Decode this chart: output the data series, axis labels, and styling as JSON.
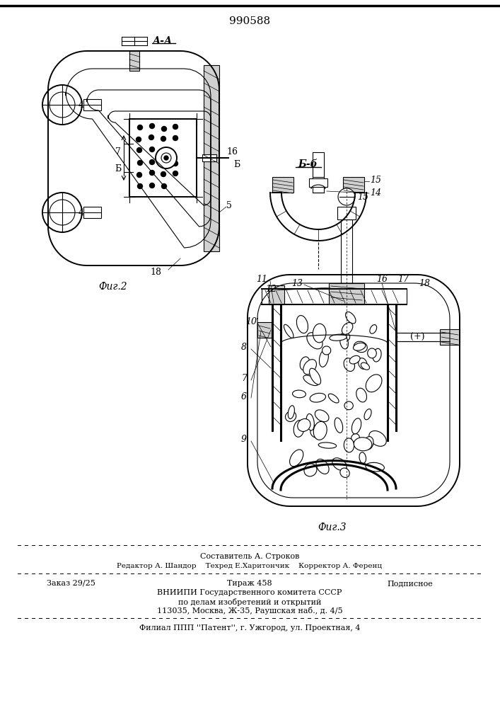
{
  "patent_number": "990588",
  "background_color": "#ffffff",
  "line_color": "#000000",
  "footer_lines": [
    "Составитель А. Строков",
    "Редактор А. Шандор    Техред Е.Харитончик    Корректор А. Ференц",
    "Заказ 29/25              Тираж 458                    Подписное",
    "ВНИИПИ Государственного комитета СССР",
    "по делам изобретений и открытий",
    "113035, Москва, Ж-35, Раушская наб., д. 4/5",
    "Филиал ППП ''Патент'', г. Ужгород, ул. Проектная, 4"
  ]
}
